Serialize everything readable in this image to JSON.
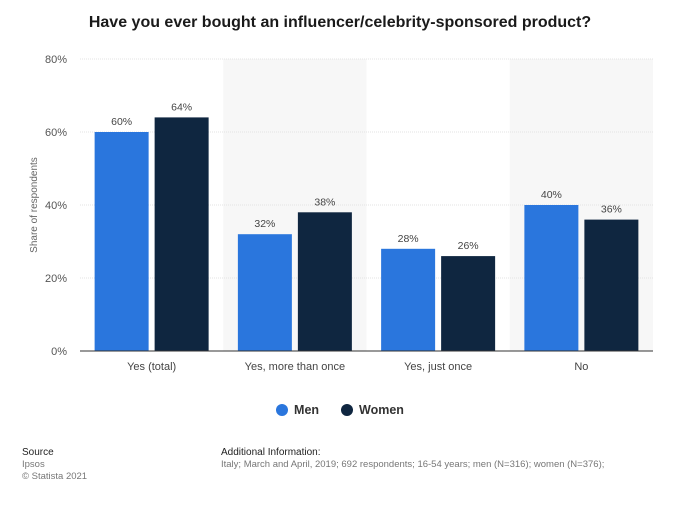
{
  "chart_data": {
    "type": "bar",
    "title": "Have you ever bought an influencer/celebrity-sponsored product?",
    "ylabel": "Share of respondents",
    "xlabel": "",
    "ylim": [
      0,
      80
    ],
    "yticks": [
      "0%",
      "20%",
      "40%",
      "60%",
      "80%"
    ],
    "categories": [
      "Yes (total)",
      "Yes, more than once",
      "Yes, just once",
      "No"
    ],
    "series": [
      {
        "name": "Men",
        "color": "#2a76dd",
        "values": [
          60,
          32,
          28,
          40
        ]
      },
      {
        "name": "Women",
        "color": "#0f2640",
        "values": [
          64,
          38,
          26,
          36
        ]
      }
    ],
    "grid": true,
    "legend": "bottom-center",
    "value_suffix": "%"
  },
  "footer": {
    "source_heading": "Source",
    "source_name": "Ipsos",
    "copyright": "© Statista 2021",
    "info_heading": "Additional Information:",
    "info_text": "Italy; March and April, 2019; 692 respondents; 16-54 years; men (N=316); women (N=376);"
  }
}
